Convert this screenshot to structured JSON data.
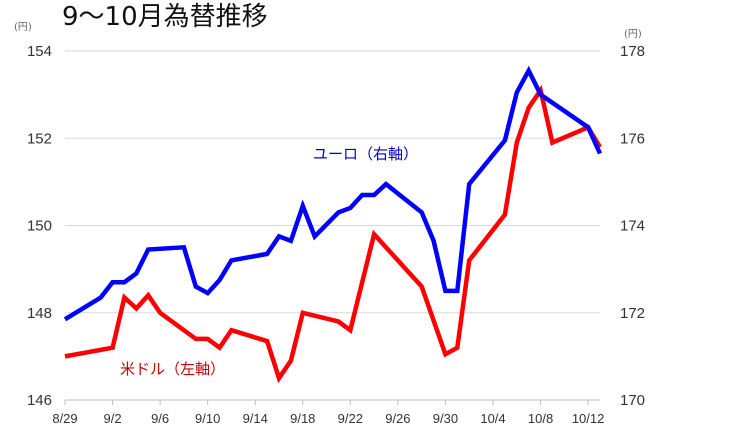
{
  "chart_data": {
    "type": "line",
    "title": "9～10月為替推移",
    "left_axis": {
      "unit": "(円)",
      "ylim": [
        146,
        154
      ],
      "ticks": [
        146,
        148,
        150,
        152,
        154
      ]
    },
    "right_axis": {
      "unit": "(円)",
      "ylim": [
        170,
        178
      ],
      "ticks": [
        170,
        172,
        174,
        176,
        178
      ]
    },
    "x_ticks": [
      "8/29",
      "9/2",
      "9/6",
      "9/10",
      "9/14",
      "9/18",
      "9/22",
      "9/26",
      "9/30",
      "10/4",
      "10/8",
      "10/12"
    ],
    "x_tick_positions": [
      0,
      4,
      8,
      12,
      16,
      20,
      24,
      28,
      32,
      36,
      40,
      44
    ],
    "grid": "horizontal",
    "series": [
      {
        "name": "米ドル（左軸）",
        "axis": "left",
        "color": "#ff0000",
        "x": [
          0,
          4,
          5,
          6,
          7,
          8,
          11,
          12,
          13,
          14,
          17,
          18,
          19,
          20,
          23,
          24,
          26,
          30,
          32,
          33,
          34,
          37,
          38,
          39,
          40,
          41,
          44,
          45
        ],
        "values": [
          147.0,
          147.2,
          148.35,
          148.1,
          148.4,
          148.0,
          147.4,
          147.4,
          147.2,
          147.6,
          147.35,
          146.5,
          146.9,
          148.0,
          147.8,
          147.6,
          149.8,
          148.6,
          147.05,
          147.2,
          149.2,
          150.25,
          151.9,
          152.7,
          153.1,
          151.9,
          152.25,
          151.8
        ]
      },
      {
        "name": "ユーロ（右軸）",
        "axis": "right",
        "color": "#0000ff",
        "x": [
          0,
          3,
          4,
          5,
          6,
          7,
          10,
          11,
          12,
          13,
          14,
          17,
          18,
          19,
          20,
          21,
          23,
          24,
          25,
          26,
          27,
          30,
          31,
          32,
          33,
          34,
          37,
          38,
          39,
          40,
          44,
          45
        ],
        "values": [
          171.85,
          172.35,
          172.7,
          172.7,
          172.9,
          173.45,
          173.5,
          172.6,
          172.45,
          172.75,
          173.2,
          173.35,
          173.75,
          173.65,
          174.45,
          173.75,
          174.3,
          174.4,
          174.7,
          174.7,
          174.95,
          174.3,
          173.65,
          172.5,
          172.5,
          174.95,
          175.95,
          177.05,
          177.55,
          177.0,
          176.25,
          175.65
        ]
      }
    ],
    "annotations": [
      {
        "text": "ユーロ（右軸）",
        "series": "ユーロ（右軸）"
      },
      {
        "text": "米ドル（左軸）",
        "series": "米ドル（左軸）"
      }
    ]
  }
}
